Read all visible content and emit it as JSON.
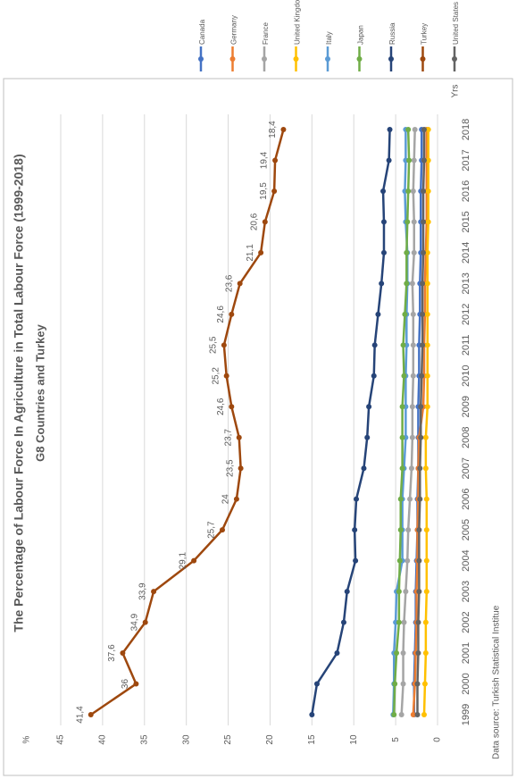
{
  "chart_data": {
    "type": "line",
    "title": "The Percentage of Labour Force In Agriculture in Total Labour Force (1999-2018)",
    "subtitle": "G8 Countries and Turkey",
    "source": "Data source: Turkish Statistical Institue",
    "x_label": "Yrs",
    "y_label": "%",
    "categories": [
      "1999",
      "2000",
      "2001",
      "2002",
      "2003",
      "2004",
      "2005",
      "2006",
      "2007",
      "2008",
      "2009",
      "2010",
      "2011",
      "2012",
      "2013",
      "2014",
      "2015",
      "2016",
      "2017",
      "2018"
    ],
    "ylim": [
      0,
      45
    ],
    "yticks": [
      0,
      5,
      10,
      15,
      20,
      25,
      30,
      35,
      40,
      45
    ],
    "grid": true,
    "series": [
      {
        "name": "Canada",
        "color": "#4472c4",
        "values": [
          2.8,
          2.8,
          2.7,
          2.6,
          2.6,
          2.5,
          2.4,
          2.4,
          2.3,
          2.3,
          2.3,
          2.2,
          2.2,
          2.1,
          2.1,
          2.0,
          2.0,
          2.0,
          1.9,
          1.9
        ]
      },
      {
        "name": "Germany",
        "color": "#ed7d31",
        "values": [
          2.9,
          2.7,
          2.6,
          2.5,
          2.5,
          2.4,
          2.4,
          2.3,
          2.3,
          2.2,
          1.7,
          1.6,
          1.6,
          1.5,
          1.5,
          1.4,
          1.3,
          1.3,
          1.3,
          1.3
        ]
      },
      {
        "name": "France",
        "color": "#a5a5a5",
        "values": [
          4.3,
          4.1,
          4.1,
          4.0,
          3.8,
          3.6,
          3.5,
          3.3,
          3.1,
          3.0,
          3.0,
          2.9,
          2.9,
          2.9,
          3.0,
          2.8,
          2.8,
          2.9,
          2.8,
          2.7
        ]
      },
      {
        "name": "United Kingdom",
        "color": "#ffc000",
        "values": [
          1.6,
          1.5,
          1.4,
          1.4,
          1.3,
          1.3,
          1.3,
          1.3,
          1.4,
          1.4,
          1.2,
          1.2,
          1.2,
          1.2,
          1.2,
          1.2,
          1.1,
          1.1,
          1.1,
          1.1
        ]
      },
      {
        "name": "Italy",
        "color": "#5b9bd5",
        "values": [
          5.3,
          5.2,
          5.2,
          5.0,
          4.9,
          4.2,
          4.2,
          4.2,
          4.0,
          3.8,
          3.8,
          3.8,
          3.7,
          3.7,
          3.6,
          3.6,
          3.8,
          3.9,
          3.8,
          3.8
        ]
      },
      {
        "name": "Japan",
        "color": "#70ad47",
        "values": [
          5.2,
          5.1,
          4.9,
          4.6,
          4.6,
          4.5,
          4.4,
          4.4,
          4.2,
          4.2,
          4.2,
          4.0,
          4.1,
          3.9,
          3.7,
          3.7,
          3.6,
          3.5,
          3.4,
          3.5
        ]
      },
      {
        "name": "Russia",
        "color": "#264478",
        "values": [
          15.0,
          14.4,
          12.0,
          11.2,
          10.8,
          9.8,
          9.9,
          9.7,
          8.8,
          8.4,
          8.2,
          7.6,
          7.5,
          7.1,
          6.7,
          6.4,
          6.4,
          6.5,
          5.8,
          5.7
        ]
      },
      {
        "name": "Turkey",
        "color": "#9e480e",
        "values": [
          41.4,
          36,
          37.6,
          34.9,
          33.9,
          29.1,
          25.7,
          24,
          23.5,
          23.7,
          24.6,
          25.2,
          25.5,
          24.6,
          23.6,
          21.1,
          20.6,
          19.5,
          19.4,
          18.4
        ],
        "value_labels": [
          "41,4",
          "36",
          "37,6",
          "34,9",
          "33,9",
          "29,1",
          "25,7",
          "24",
          "23,5",
          "23,7",
          "24,6",
          "25,2",
          "25,5",
          "24,6",
          "23,6",
          "21,1",
          "20,6",
          "19,5",
          "19,4",
          "18,4"
        ]
      },
      {
        "name": "United States",
        "color": "#636363",
        "values": [
          2.4,
          2.4,
          2.3,
          2.3,
          2.2,
          2.2,
          2.2,
          2.1,
          2.1,
          2.0,
          2.0,
          1.9,
          1.8,
          1.8,
          1.8,
          1.7,
          1.7,
          1.7,
          1.6,
          1.6
        ]
      }
    ]
  }
}
